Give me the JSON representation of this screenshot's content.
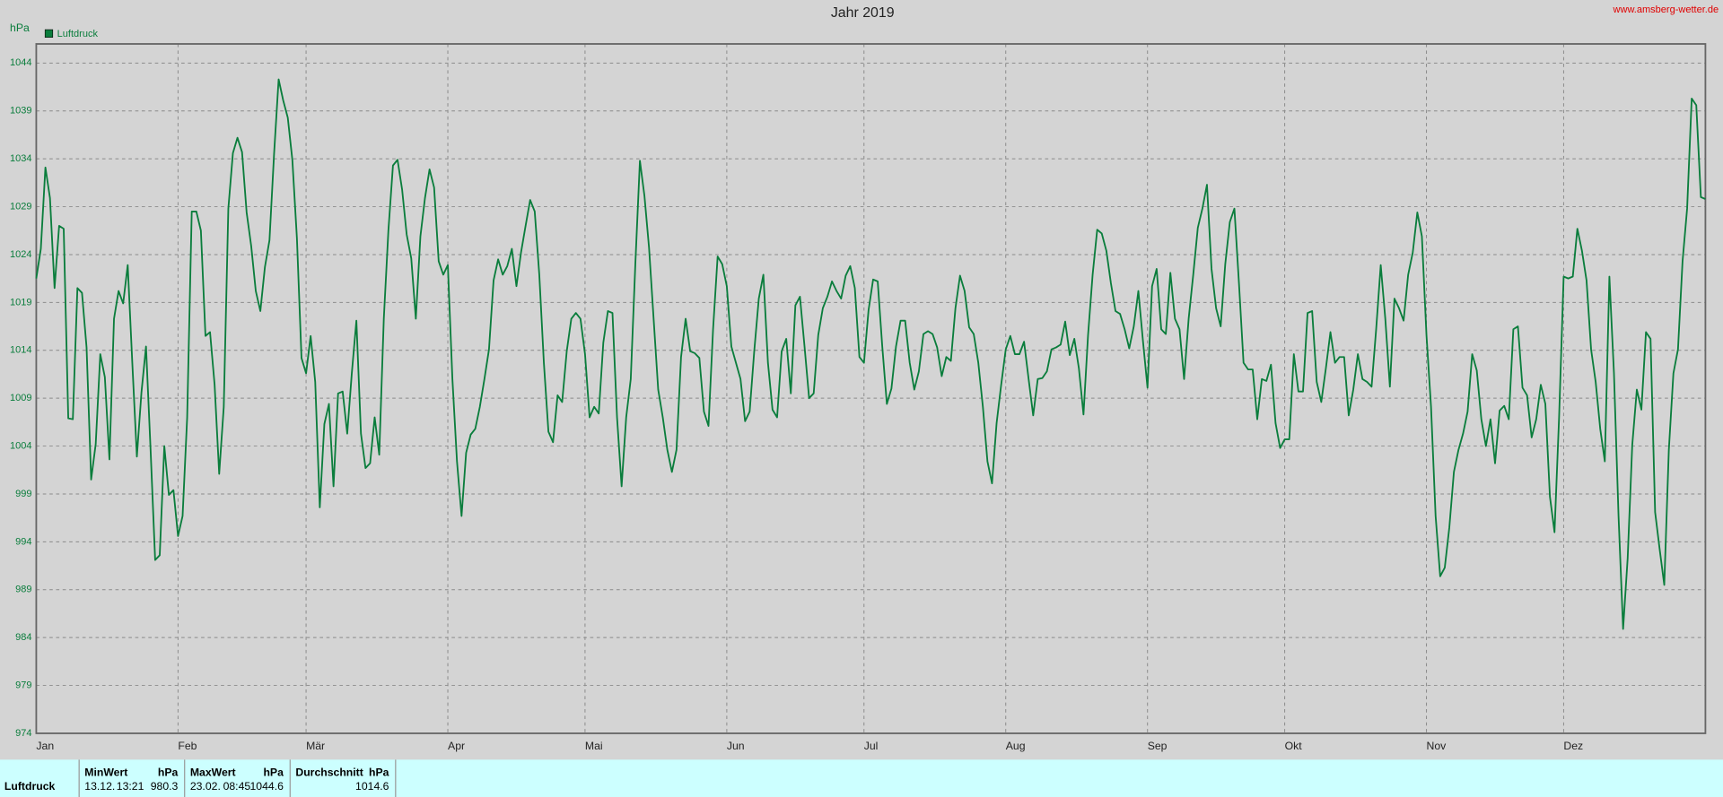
{
  "chart_data": {
    "type": "line",
    "title": "Jahr 2019",
    "source": "www.amsberg-wetter.de",
    "y_unit": "hPa",
    "grid": true,
    "legend": "top-left",
    "xlim": [
      0,
      365
    ],
    "ylim": [
      974,
      1046
    ],
    "yticks": [
      974,
      979,
      984,
      989,
      994,
      999,
      1004,
      1009,
      1014,
      1019,
      1024,
      1029,
      1034,
      1039,
      1044
    ],
    "xticks": [
      {
        "value": 0,
        "label": "Jan"
      },
      {
        "value": 31,
        "label": "Feb"
      },
      {
        "value": 59,
        "label": "Mär"
      },
      {
        "value": 90,
        "label": "Apr"
      },
      {
        "value": 120,
        "label": "Mai"
      },
      {
        "value": 151,
        "label": "Jun"
      },
      {
        "value": 181,
        "label": "Jul"
      },
      {
        "value": 212,
        "label": "Aug"
      },
      {
        "value": 243,
        "label": "Sep"
      },
      {
        "value": 273,
        "label": "Okt"
      },
      {
        "value": 304,
        "label": "Nov"
      },
      {
        "value": 334,
        "label": "Dez"
      }
    ],
    "x": [
      0,
      1,
      2,
      3,
      4,
      5,
      6,
      7,
      8,
      9,
      10,
      11,
      12,
      13,
      14,
      15,
      16,
      17,
      18,
      19,
      20,
      21,
      22,
      23,
      24,
      25,
      26,
      27,
      28,
      29,
      30,
      31,
      32,
      33,
      34,
      35,
      36,
      37,
      38,
      39,
      40,
      41,
      42,
      43,
      44,
      45,
      46,
      47,
      48,
      49,
      50,
      51,
      52,
      53,
      54,
      55,
      56,
      57,
      58,
      59,
      60,
      61,
      62,
      63,
      64,
      65,
      66,
      67,
      68,
      69,
      70,
      71,
      72,
      73,
      74,
      75,
      76,
      77,
      78,
      79,
      80,
      81,
      82,
      83,
      84,
      85,
      86,
      87,
      88,
      89,
      90,
      91,
      92,
      93,
      94,
      95,
      96,
      97,
      98,
      99,
      100,
      101,
      102,
      103,
      104,
      105,
      106,
      107,
      108,
      109,
      110,
      111,
      112,
      113,
      114,
      115,
      116,
      117,
      118,
      119,
      120,
      121,
      122,
      123,
      124,
      125,
      126,
      127,
      128,
      129,
      130,
      131,
      132,
      133,
      134,
      135,
      136,
      137,
      138,
      139,
      140,
      141,
      142,
      143,
      144,
      145,
      146,
      147,
      148,
      149,
      150,
      151,
      152,
      153,
      154,
      155,
      156,
      157,
      158,
      159,
      160,
      161,
      162,
      163,
      164,
      165,
      166,
      167,
      168,
      169,
      170,
      171,
      172,
      173,
      174,
      175,
      176,
      177,
      178,
      179,
      180,
      181,
      182,
      183,
      184,
      185,
      186,
      187,
      188,
      189,
      190,
      191,
      192,
      193,
      194,
      195,
      196,
      197,
      198,
      199,
      200,
      201,
      202,
      203,
      204,
      205,
      206,
      207,
      208,
      209,
      210,
      211,
      212,
      213,
      214,
      215,
      216,
      217,
      218,
      219,
      220,
      221,
      222,
      223,
      224,
      225,
      226,
      227,
      228,
      229,
      230,
      231,
      232,
      233,
      234,
      235,
      236,
      237,
      238,
      239,
      240,
      241,
      242,
      243,
      244,
      245,
      246,
      247,
      248,
      249,
      250,
      251,
      252,
      253,
      254,
      255,
      256,
      257,
      258,
      259,
      260,
      261,
      262,
      263,
      264,
      265,
      266,
      267,
      268,
      269,
      270,
      271,
      272,
      273,
      274,
      275,
      276,
      277,
      278,
      279,
      280,
      281,
      282,
      283,
      284,
      285,
      286,
      287,
      288,
      289,
      290,
      291,
      292,
      293,
      294,
      295,
      296,
      297,
      298,
      299,
      300,
      301,
      302,
      303,
      304,
      305,
      306,
      307,
      308,
      309,
      310,
      311,
      312,
      313,
      314,
      315,
      316,
      317,
      318,
      319,
      320,
      321,
      322,
      323,
      324,
      325,
      326,
      327,
      328,
      329,
      330,
      331,
      332,
      333,
      334,
      335,
      336,
      337,
      338,
      339,
      340,
      341,
      342,
      343,
      344,
      345,
      346,
      347,
      348,
      349,
      350,
      351,
      352,
      353,
      354,
      355,
      356,
      357,
      358,
      359,
      360,
      361,
      362,
      363,
      364,
      365
    ],
    "series": [
      {
        "name": "Luftdruck",
        "color": "#0a7d3c",
        "values": [
          1021.5,
          1024.6,
          1033.1,
          1029.9,
          1020.5,
          1027,
          1026.7,
          1006.9,
          1006.8,
          1020.5,
          1020,
          1014.3,
          1000.5,
          1004.2,
          1013.6,
          1011.2,
          1002.6,
          1017.3,
          1020.2,
          1018.9,
          1022.9,
          1012.7,
          1002.9,
          1009.6,
          1014.4,
          1003.6,
          992.1,
          992.6,
          1004,
          998.9,
          999.4,
          994.6,
          996.7,
          1007,
          1028.5,
          1028.5,
          1026.5,
          1015.5,
          1015.9,
          1010.4,
          1001.1,
          1008.1,
          1028.8,
          1034.6,
          1036.2,
          1034.7,
          1028.4,
          1024.9,
          1020.2,
          1018.1,
          1022.7,
          1025.5,
          1034.5,
          1042.3,
          1040.1,
          1038.3,
          1033.9,
          1025.7,
          1013.2,
          1011.6,
          1015.5,
          1010.7,
          997.6,
          1006.3,
          1008.4,
          999.8,
          1009.5,
          1009.7,
          1005.3,
          1011.6,
          1017.1,
          1005.3,
          1001.7,
          1002.2,
          1007,
          1003.1,
          1017.3,
          1026.5,
          1033.3,
          1033.9,
          1030.8,
          1026.1,
          1023.6,
          1017.3,
          1025.9,
          1029.9,
          1032.9,
          1031,
          1023.3,
          1021.9,
          1022.9,
          1011,
          1002.4,
          996.7,
          1003.3,
          1005.2,
          1005.8,
          1008.1,
          1011,
          1014.1,
          1021.3,
          1023.5,
          1021.9,
          1022.8,
          1024.6,
          1020.7,
          1024.2,
          1027,
          1029.7,
          1028.5,
          1021.9,
          1012.7,
          1005.5,
          1004.4,
          1009.3,
          1008.6,
          1013.9,
          1017.3,
          1017.9,
          1017.3,
          1013.6,
          1007,
          1008.1,
          1007.4,
          1014.8,
          1018.1,
          1017.9,
          1007,
          999.8,
          1007,
          1011,
          1023,
          1033.8,
          1030.1,
          1024.7,
          1017.3,
          1009.9,
          1007,
          1003.6,
          1001.3,
          1003.6,
          1013.3,
          1017.3,
          1013.9,
          1013.7,
          1013.2,
          1007.6,
          1006.1,
          1016.2,
          1023.8,
          1023,
          1020.7,
          1014.4,
          1012.7,
          1011,
          1006.6,
          1007.6,
          1013.9,
          1019.4,
          1021.9,
          1012.7,
          1007.8,
          1007,
          1013.9,
          1015.2,
          1009.5,
          1018.7,
          1019.6,
          1014.4,
          1009,
          1009.5,
          1015.6,
          1018.4,
          1019.6,
          1021.2,
          1020.2,
          1019.4,
          1021.8,
          1022.8,
          1020.5,
          1013.3,
          1012.7,
          1018.2,
          1021.4,
          1021.2,
          1014.4,
          1008.4,
          1010,
          1014.4,
          1017.1,
          1017.1,
          1012.7,
          1009.9,
          1011.8,
          1015.7,
          1016,
          1015.7,
          1014.3,
          1011.3,
          1013.3,
          1012.9,
          1018.4,
          1021.8,
          1020.2,
          1016.4,
          1015.7,
          1012.7,
          1008.1,
          1002.4,
          1000.1,
          1006.4,
          1010.4,
          1014.1,
          1015.5,
          1013.6,
          1013.6,
          1014.9,
          1011,
          1007.2,
          1011,
          1011.1,
          1011.8,
          1014.1,
          1014.3,
          1014.6,
          1017,
          1013.5,
          1015.2,
          1012.1,
          1007.3,
          1015.6,
          1021.9,
          1026.6,
          1026.2,
          1024.4,
          1021,
          1018.1,
          1017.8,
          1016.2,
          1014.2,
          1016.5,
          1020.2,
          1015,
          1010.1,
          1020.7,
          1022.5,
          1016.2,
          1015.7,
          1022.1,
          1017.3,
          1016.2,
          1011,
          1017.3,
          1021.9,
          1026.8,
          1028.8,
          1031.3,
          1022.5,
          1018.4,
          1016.5,
          1023,
          1027.4,
          1028.8,
          1021,
          1012.7,
          1012,
          1012,
          1006.8,
          1011,
          1010.8,
          1012.5,
          1006.4,
          1003.8,
          1004.7,
          1004.7,
          1013.6,
          1009.7,
          1009.7,
          1017.9,
          1018.1,
          1010.7,
          1008.6,
          1012.1,
          1015.9,
          1012.7,
          1013.3,
          1013.3,
          1007.2,
          1009.9,
          1013.6,
          1011,
          1010.7,
          1010.2,
          1016.2,
          1022.9,
          1017.3,
          1010.2,
          1019.4,
          1018.4,
          1017.1,
          1021.9,
          1024.2,
          1028.4,
          1025.9,
          1015.6,
          1008.1,
          996.7,
          990.4,
          991.3,
          995.5,
          1001.3,
          1003.6,
          1005.3,
          1007.6,
          1013.6,
          1011.9,
          1006.8,
          1004,
          1006.8,
          1002.2,
          1007.7,
          1008.2,
          1006.8,
          1016.2,
          1016.5,
          1010.1,
          1009.3,
          1004.9,
          1006.8,
          1010.4,
          1008.4,
          998.7,
          995,
          1007,
          1021.7,
          1021.5,
          1021.7,
          1026.7,
          1024.4,
          1021.3,
          1014.1,
          1010.7,
          1005.8,
          1002.4,
          1021.7,
          1011.6,
          996.7,
          984.9,
          992.3,
          1004.1,
          1009.9,
          1007.8,
          1015.9,
          1015.2,
          997.1,
          993.2,
          989.5,
          1003.6,
          1011.6,
          1014.1,
          1023.3,
          1028.8,
          1040.3,
          1039.6,
          1030,
          1029.8
        ]
      }
    ],
    "summary": {
      "row_label": "Luftdruck",
      "min": {
        "header": "MinWert",
        "unit": "hPa",
        "date": "13.12.",
        "time": "13:21",
        "value": 980.3
      },
      "max": {
        "header": "MaxWert",
        "unit": "hPa",
        "date": "23.02.",
        "time": "08:45",
        "value": 1044.6
      },
      "avg": {
        "header": "Durchschnitt",
        "unit": "hPa",
        "value": 1014.6
      }
    }
  }
}
